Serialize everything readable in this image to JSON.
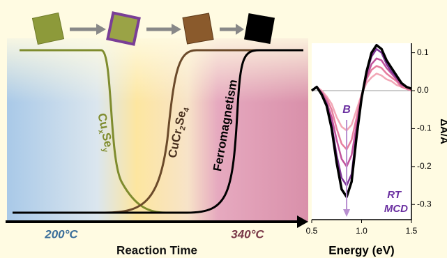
{
  "schematic": {
    "cuxsey": [
      "Cu",
      "x",
      "Se",
      "y"
    ],
    "cucr2se4": [
      "CuCr",
      "2",
      "Se",
      "4"
    ],
    "ferromagnetism": "Ferromagnetism",
    "temp_low": "200°C",
    "temp_high": "340°C",
    "x_label": "Reaction Time"
  },
  "chart_data": {
    "type": "line",
    "xlabel": "Energy (eV)",
    "ylabel": "ΔA/A",
    "annotations": [
      "B",
      "RT",
      "MCD"
    ],
    "x": [
      0.5,
      0.55,
      0.6,
      0.65,
      0.7,
      0.75,
      0.8,
      0.85,
      0.9,
      0.95,
      1.0,
      1.05,
      1.1,
      1.15,
      1.2,
      1.25,
      1.3,
      1.35,
      1.4,
      1.45,
      1.5
    ],
    "series": [
      {
        "color": "#f2a7b6",
        "values": [
          0,
          0.01,
          0,
          -0.015,
          -0.035,
          -0.07,
          -0.095,
          -0.105,
          -0.09,
          -0.05,
          -0.01,
          0.02,
          0.035,
          0.045,
          0.04,
          0.03,
          0.025,
          0.015,
          0.01,
          0.005,
          0
        ]
      },
      {
        "color": "#e67d9e",
        "values": [
          0,
          0.01,
          -0.005,
          -0.02,
          -0.05,
          -0.1,
          -0.14,
          -0.155,
          -0.13,
          -0.07,
          -0.01,
          0.03,
          0.055,
          0.065,
          0.06,
          0.045,
          0.035,
          0.025,
          0.01,
          0.005,
          0
        ]
      },
      {
        "color": "#c0529c",
        "values": [
          0,
          0.01,
          -0.005,
          -0.03,
          -0.07,
          -0.13,
          -0.18,
          -0.2,
          -0.17,
          -0.09,
          -0.015,
          0.035,
          0.07,
          0.085,
          0.08,
          0.06,
          0.045,
          0.03,
          0.015,
          0.01,
          0.005
        ]
      },
      {
        "color": "#7e3596",
        "values": [
          0,
          0.01,
          -0.01,
          -0.035,
          -0.09,
          -0.17,
          -0.23,
          -0.25,
          -0.22,
          -0.11,
          -0.02,
          0.045,
          0.09,
          0.11,
          0.1,
          0.07,
          0.05,
          0.035,
          0.02,
          0.01,
          0.005
        ]
      },
      {
        "color": "#000000",
        "values": [
          0,
          0.01,
          -0.01,
          -0.04,
          -0.1,
          -0.19,
          -0.26,
          -0.28,
          -0.24,
          -0.12,
          -0.02,
          0.05,
          0.1,
          0.12,
          0.11,
          0.08,
          0.06,
          0.04,
          0.02,
          0.01,
          0.005
        ]
      }
    ],
    "xlim": [
      0.5,
      1.5
    ],
    "ylim": [
      -0.34,
      0.125
    ],
    "xticks": [
      0.5,
      {
        "value": 1,
        "label": "1.0"
      },
      1.5
    ],
    "yticks": [
      0.1,
      {
        "value": 0,
        "label": "0.0"
      },
      -0.1,
      -0.2,
      -0.3
    ],
    "zero_line": true
  }
}
